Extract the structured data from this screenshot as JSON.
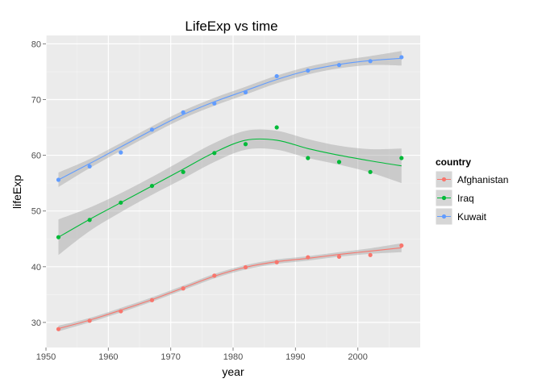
{
  "chart_data": {
    "type": "line",
    "title": "LifeExp vs time",
    "xlabel": "year",
    "ylabel": "lifeExp",
    "xlim": [
      1950,
      2010
    ],
    "ylim": [
      25.5,
      81.5
    ],
    "x_ticks": [
      1950,
      1960,
      1970,
      1980,
      1990,
      2000
    ],
    "y_ticks": [
      30,
      40,
      50,
      60,
      70,
      80
    ],
    "grid": true,
    "legend": {
      "title": "country",
      "position": "right"
    },
    "points_and_smooth": true,
    "series": [
      {
        "name": "Afghanistan",
        "color": "#F8766D",
        "x": [
          1952,
          1957,
          1962,
          1967,
          1972,
          1977,
          1982,
          1987,
          1992,
          1997,
          2002,
          2007
        ],
        "y": [
          28.8,
          30.3,
          32.0,
          34.0,
          36.1,
          38.4,
          39.9,
          40.8,
          41.7,
          41.8,
          42.1,
          43.8
        ],
        "smooth": [
          28.9,
          30.4,
          32.2,
          34.1,
          36.2,
          38.3,
          39.9,
          40.9,
          41.5,
          42.2,
          42.8,
          43.4
        ],
        "band": [
          0.5,
          0.4,
          0.4,
          0.4,
          0.4,
          0.4,
          0.4,
          0.4,
          0.4,
          0.4,
          0.5,
          0.8
        ]
      },
      {
        "name": "Iraq",
        "color": "#00BA38",
        "x": [
          1952,
          1957,
          1962,
          1967,
          1972,
          1977,
          1982,
          1987,
          1992,
          1997,
          2002,
          2007
        ],
        "y": [
          45.3,
          48.4,
          51.5,
          54.5,
          57.0,
          60.4,
          62.0,
          65.0,
          59.5,
          58.8,
          57.0,
          59.5
        ],
        "smooth": [
          45.3,
          48.5,
          51.5,
          54.5,
          57.5,
          60.5,
          62.7,
          62.7,
          61.2,
          60.0,
          59.0,
          58.1
        ],
        "band": [
          3.2,
          2.1,
          1.7,
          1.6,
          1.7,
          1.7,
          1.7,
          1.7,
          1.7,
          1.7,
          2.1,
          3.1
        ]
      },
      {
        "name": "Kuwait",
        "color": "#619CFF",
        "x": [
          1952,
          1957,
          1962,
          1967,
          1972,
          1977,
          1982,
          1987,
          1992,
          1997,
          2002,
          2007
        ],
        "y": [
          55.6,
          58.0,
          60.5,
          64.6,
          67.7,
          69.3,
          71.3,
          74.2,
          75.2,
          76.2,
          76.9,
          77.6
        ],
        "smooth": [
          55.6,
          58.5,
          61.5,
          64.5,
          67.3,
          69.6,
          71.6,
          73.6,
          75.2,
          76.3,
          77.0,
          77.4
        ],
        "band": [
          1.3,
          0.8,
          0.7,
          0.7,
          0.7,
          0.7,
          0.7,
          0.7,
          0.7,
          0.7,
          0.8,
          1.3
        ]
      }
    ]
  }
}
